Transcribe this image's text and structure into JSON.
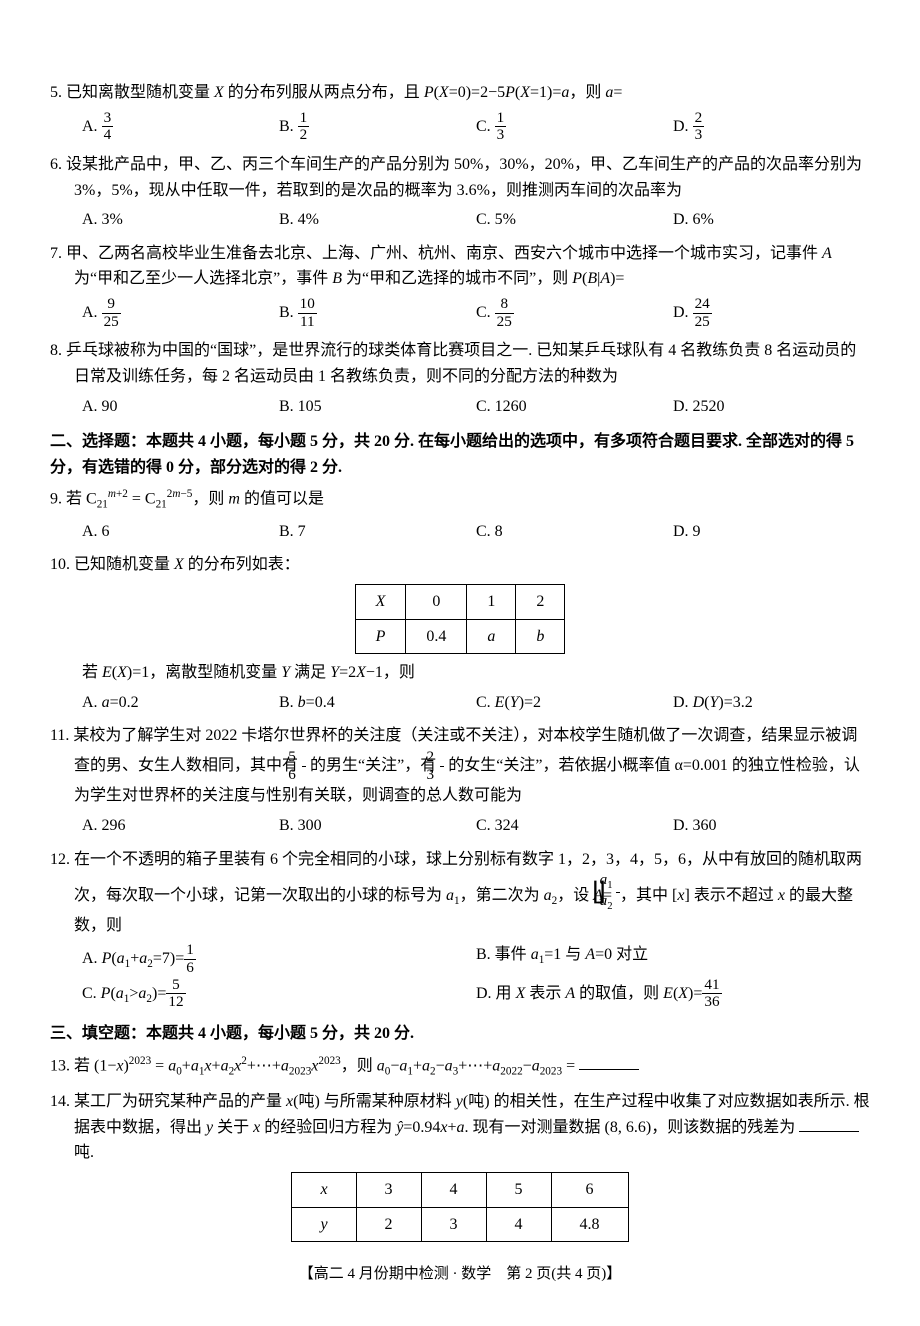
{
  "q5": {
    "text": "5. 已知离散型随机变量 X 的分布列服从两点分布，且 P(X=0)=2−5P(X=1)=a，则 a=",
    "options": [
      "A. 3/4",
      "B. 1/2",
      "C. 1/3",
      "D. 2/3"
    ],
    "opt_frac": [
      {
        "n": "3",
        "d": "4"
      },
      {
        "n": "1",
        "d": "2"
      },
      {
        "n": "1",
        "d": "3"
      },
      {
        "n": "2",
        "d": "3"
      }
    ],
    "opt_prefix": [
      "A. ",
      "B. ",
      "C. ",
      "D. "
    ]
  },
  "q6": {
    "text": "6. 设某批产品中，甲、乙、丙三个车间生产的产品分别为 50%，30%，20%，甲、乙车间生产的产品的次品率分别为 3%，5%，现从中任取一件，若取到的是次品的概率为 3.6%，则推测丙车间的次品率为",
    "options": {
      "A": "A. 3%",
      "B": "B. 4%",
      "C": "C. 5%",
      "D": "D. 6%"
    }
  },
  "q7": {
    "text_p1": "7. 甲、乙两名高校毕业生准备去北京、上海、广州、杭州、南京、西安六个城市中选择一个城市实习，记事件 A 为“甲和乙至少一人选择北京”，事件 B 为“甲和乙选择的城市不同”，则 P(B|A)=",
    "opt_frac": [
      {
        "n": "9",
        "d": "25"
      },
      {
        "n": "10",
        "d": "11"
      },
      {
        "n": "8",
        "d": "25"
      },
      {
        "n": "24",
        "d": "25"
      }
    ],
    "opt_prefix": [
      "A. ",
      "B. ",
      "C. ",
      "D. "
    ]
  },
  "q8": {
    "text": "8. 乒乓球被称为中国的“国球”，是世界流行的球类体育比赛项目之一. 已知某乒乓球队有 4 名教练负责 8 名运动员的日常及训练任务，每 2 名运动员由 1 名教练负责，则不同的分配方法的种数为",
    "options": {
      "A": "A. 90",
      "B": "B. 105",
      "C": "C. 1260",
      "D": "D. 2520"
    }
  },
  "section2": {
    "title": "二、选择题：本题共 4 小题，每小题 5 分，共 20 分. 在每小题给出的选项中，有多项符合题目要求. 全部选对的得 5 分，有选错的得 0 分，部分选对的得 2 分."
  },
  "q9": {
    "text": "9. 若 C₂₁^(m+2) = C₂₁^(2m−5)，则 m 的值可以是",
    "options": {
      "A": "A. 6",
      "B": "B. 7",
      "C": "C. 8",
      "D": "D. 9"
    }
  },
  "q10": {
    "text": "10. 已知随机变量 X 的分布列如表：",
    "table": {
      "header": [
        "X",
        "0",
        "1",
        "2"
      ],
      "row": [
        "P",
        "0.4",
        "a",
        "b"
      ]
    },
    "text2_pre": "若 E(X)=1，离散型随机变量 Y 满足 Y=2X−1，则",
    "options": {
      "A": "A. a=0.2",
      "B": "B. b=0.4",
      "C": "C. E(Y)=2",
      "D": "D. D(Y)=3.2"
    }
  },
  "q11": {
    "text_p1": "11. 某校为了解学生对 2022 卡塔尔世界杯的关注度（关注或不关注），对本校学生随机做了一次调查，结果显示被调查的男、女生人数相同，其中有",
    "frac1": {
      "n": "5",
      "d": "6"
    },
    "text_p2": "的男生“关注”，有",
    "frac2": {
      "n": "2",
      "d": "3"
    },
    "text_p3": "的女生“关注”，若依据小概率值 α=0.001 的独立性检验，认为学生对世界杯的关注度与性别有关联，则调查的总人数可能为",
    "options": {
      "A": "A. 296",
      "B": "B. 300",
      "C": "C. 324",
      "D": "D. 360"
    }
  },
  "q12": {
    "text_p1": "12. 在一个不透明的箱子里装有 6 个完全相同的小球，球上分别标有数字 1，2，3，4，5，6，从中有放回的随机取两次，每次取一个小球，记第一次取出的小球的标号为 a₁，第二次为 a₂，设 A=",
    "floor": {
      "n": "a₁",
      "d": "a₂"
    },
    "text_p2": "，其中 [x] 表示不超过 x 的最大整数，则",
    "optA_pre": "A. P(a₁+a₂=7)=",
    "optA_frac": {
      "n": "1",
      "d": "6"
    },
    "optB": "B. 事件 a₁=1 与 A=0 对立",
    "optC_pre": "C. P(a₁>a₂)=",
    "optC_frac": {
      "n": "5",
      "d": "12"
    },
    "optD_pre": "D. 用 X 表示 A 的取值，则 E(X)=",
    "optD_frac": {
      "n": "41",
      "d": "36"
    }
  },
  "section3": {
    "title": "三、填空题：本题共 4 小题，每小题 5 分，共 20 分."
  },
  "q13": {
    "text": "13. 若 (1−x)²⁰²³ = a₀+a₁x+a₂x²+⋯+a₂₀₂₃x²⁰²³，则 a₀−a₁+a₂−a₃+⋯+a₂₀₂₂−a₂₀₂₃ ="
  },
  "q14": {
    "text": "14. 某工厂为研究某种产品的产量 x(吨) 与所需某种原材料 y(吨) 的相关性，在生产过程中收集了对应数据如表所示. 根据表中数据，得出 y 关于 x 的经验回归方程为 ŷ=0.94x+a. 现有一对测量数据 (8, 6.6)，则该数据的残差为",
    "unit": "吨.",
    "table": {
      "row1": [
        "x",
        "3",
        "4",
        "5",
        "6"
      ],
      "row2": [
        "y",
        "2",
        "3",
        "4",
        "4.8"
      ]
    }
  },
  "footer": "【高二 4 月份期中检测 · 数学　第 2 页(共 4 页)】"
}
